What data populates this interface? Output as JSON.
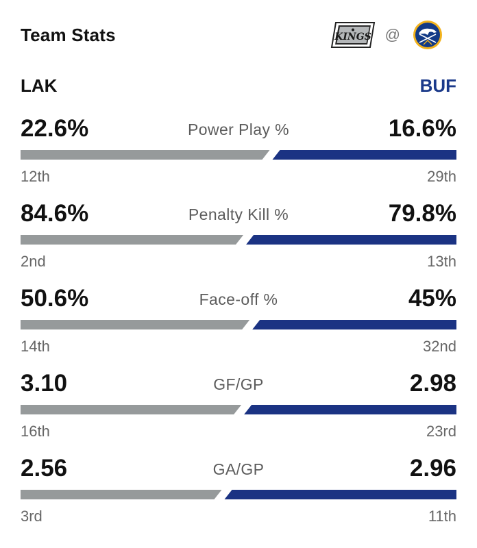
{
  "header": {
    "title": "Team Stats",
    "at_symbol": "@",
    "away_logo_text": "KINGS"
  },
  "teams": {
    "away": "LAK",
    "home": "BUF"
  },
  "colors": {
    "away_bar": "#969a9b",
    "home_bar": "#1b3383",
    "home_accent": "#1b3a8a"
  },
  "stats": [
    {
      "label": "Power Play %",
      "away_value": "22.6%",
      "home_value": "16.6%",
      "away_rank": "12th",
      "home_rank": "29th",
      "away_num": 22.6,
      "home_num": 16.6
    },
    {
      "label": "Penalty Kill %",
      "away_value": "84.6%",
      "home_value": "79.8%",
      "away_rank": "2nd",
      "home_rank": "13th",
      "away_num": 84.6,
      "home_num": 79.8
    },
    {
      "label": "Face-off %",
      "away_value": "50.6%",
      "home_value": "45%",
      "away_rank": "14th",
      "home_rank": "32nd",
      "away_num": 50.6,
      "home_num": 45
    },
    {
      "label": "GF/GP",
      "away_value": "3.10",
      "home_value": "2.98",
      "away_rank": "16th",
      "home_rank": "23rd",
      "away_num": 3.1,
      "home_num": 2.98
    },
    {
      "label": "GA/GP",
      "away_value": "2.56",
      "home_value": "2.96",
      "away_rank": "3rd",
      "home_rank": "11th",
      "away_num": 2.56,
      "home_num": 2.96
    }
  ]
}
